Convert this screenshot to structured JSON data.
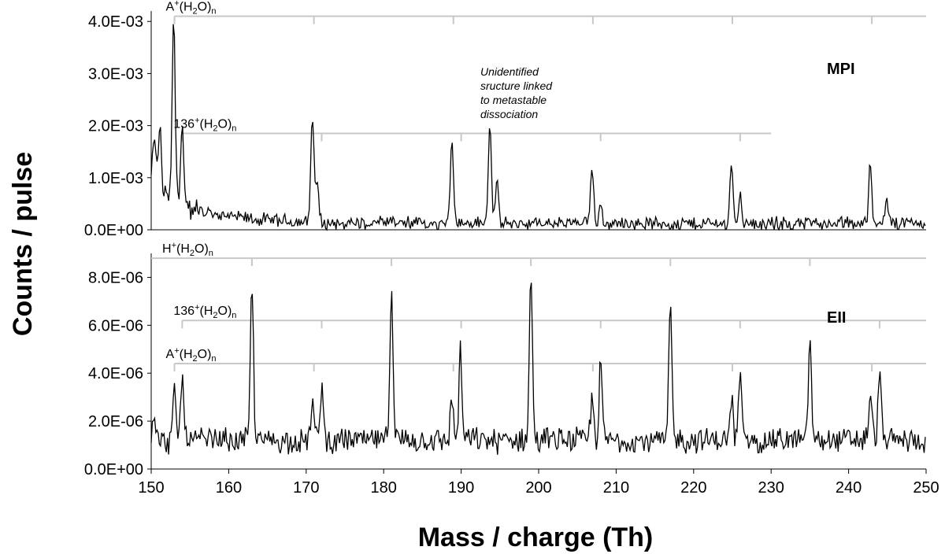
{
  "chart_data": {
    "type": "line",
    "xlabel": "Mass / charge (Th)",
    "ylabel": "Counts / pulse",
    "xlim": [
      150,
      250
    ],
    "x_ticks": [
      "150",
      "160",
      "170",
      "180",
      "190",
      "200",
      "210",
      "220",
      "230",
      "240",
      "250"
    ],
    "panels": [
      {
        "label": "MPI",
        "ylim": [
          0,
          0.0042
        ],
        "y_ticks": [
          "0.0E+00",
          "1.0E-03",
          "2.0E-03",
          "3.0E-03",
          "4.0E-03"
        ],
        "baseline": 0.00012,
        "noise": 0.0001,
        "decay": {
          "start": 150,
          "amplitude": 0.0007,
          "tau": 6
        },
        "peaks": [
          {
            "x": 150.4,
            "y": 0.0011
          },
          {
            "x": 151.1,
            "y": 0.0014
          },
          {
            "x": 152.9,
            "y": 0.0037
          },
          {
            "x": 154.0,
            "y": 0.0016
          },
          {
            "x": 170.8,
            "y": 0.0022
          },
          {
            "x": 171.4,
            "y": 0.0009
          },
          {
            "x": 188.8,
            "y": 0.0018
          },
          {
            "x": 193.7,
            "y": 0.002
          },
          {
            "x": 194.6,
            "y": 0.0009
          },
          {
            "x": 206.9,
            "y": 0.0012
          },
          {
            "x": 208.0,
            "y": 0.0005
          },
          {
            "x": 224.9,
            "y": 0.0013
          },
          {
            "x": 226.0,
            "y": 0.0007
          },
          {
            "x": 242.8,
            "y": 0.0013
          },
          {
            "x": 244.9,
            "y": 0.0006
          }
        ],
        "markers": [
          {
            "name": "A+(H2O)n",
            "y": 0.0041,
            "ticks": [
              153,
              171,
              189,
              207,
              225,
              243
            ],
            "x_start": 153,
            "x_end": 250
          },
          {
            "name": "136+(H2O)n",
            "y": 0.00185,
            "ticks": [
              154,
              172,
              190,
              208,
              226
            ],
            "x_start": 154,
            "x_end": 230
          }
        ],
        "annotation": [
          "Unidentified",
          "sructure linked",
          "to metastable",
          "dissociation"
        ]
      },
      {
        "label": "EII",
        "ylim": [
          0,
          9e-06
        ],
        "y_ticks": [
          "0.0E+00",
          "2.0E-06",
          "4.0E-06",
          "6.0E-06",
          "8.0E-06"
        ],
        "baseline": 1.2e-06,
        "noise": 4e-07,
        "peaks": [
          {
            "x": 150.3,
            "y": 2.3e-06
          },
          {
            "x": 153.0,
            "y": 3.1e-06
          },
          {
            "x": 154.0,
            "y": 3.9e-06
          },
          {
            "x": 163.0,
            "y": 7.6e-06
          },
          {
            "x": 170.8,
            "y": 2.8e-06
          },
          {
            "x": 172.0,
            "y": 3.6e-06
          },
          {
            "x": 181.0,
            "y": 7.8e-06
          },
          {
            "x": 188.8,
            "y": 3e-06
          },
          {
            "x": 189.9,
            "y": 4.8e-06
          },
          {
            "x": 199.0,
            "y": 8.1e-06
          },
          {
            "x": 206.9,
            "y": 3e-06
          },
          {
            "x": 208.0,
            "y": 4.4e-06
          },
          {
            "x": 217.0,
            "y": 6.8e-06
          },
          {
            "x": 224.9,
            "y": 2.8e-06
          },
          {
            "x": 226.0,
            "y": 4e-06
          },
          {
            "x": 235.0,
            "y": 5.4e-06
          },
          {
            "x": 242.8,
            "y": 3.1e-06
          },
          {
            "x": 244.0,
            "y": 4.2e-06
          }
        ],
        "markers": [
          {
            "name": "H+(H2O)n",
            "y": 8.8e-06,
            "ticks": [
              163,
              181,
              199,
              217,
              235
            ],
            "x_start": 150,
            "x_end": 250
          },
          {
            "name": "136+(H2O)n",
            "y": 6.2e-06,
            "ticks": [
              154,
              172,
              190,
              208,
              226,
              244
            ],
            "x_start": 154,
            "x_end": 250
          },
          {
            "name": "A+(H2O)n",
            "y": 4.4e-06,
            "ticks": [
              153,
              171,
              189,
              207,
              225,
              243
            ],
            "x_start": 153,
            "x_end": 250
          }
        ]
      }
    ]
  }
}
